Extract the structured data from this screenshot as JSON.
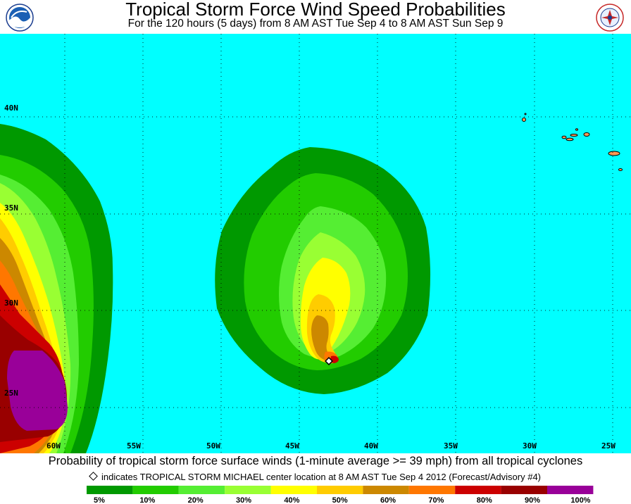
{
  "header": {
    "title": "Tropical Storm Force Wind Speed Probabilities",
    "subtitle": "For the 120 hours (5 days) from 8 AM AST Tue Sep 4 to 8 AM AST Sun Sep 9"
  },
  "logos": {
    "left": "noaa-logo",
    "right": "nws-logo"
  },
  "map": {
    "ocean_color": "#00ffff",
    "latitude_labels": [
      "40N",
      "35N",
      "30N",
      "25N"
    ],
    "longitude_labels": [
      "60W",
      "55W",
      "50W",
      "45W",
      "40W",
      "35W",
      "30W",
      "25W"
    ],
    "storm_marker": {
      "lon": -43.0,
      "lat": 26.6
    }
  },
  "caption": "Probability of tropical storm force surface winds (1-minute average >= 39 mph) from all tropical cyclones",
  "note": "indicates TROPICAL STORM MICHAEL center location at 8 AM AST Tue Sep 4 2012 (Forecast/Advisory #4)",
  "legend": {
    "labels": [
      "5%",
      "10%",
      "20%",
      "30%",
      "40%",
      "50%",
      "60%",
      "70%",
      "80%",
      "90%",
      "100%"
    ],
    "colors": [
      "#009900",
      "#22cc00",
      "#55ee33",
      "#99ff33",
      "#ffff00",
      "#ffcc00",
      "#cc8800",
      "#ff7700",
      "#cc0000",
      "#990000",
      "#990099"
    ]
  }
}
